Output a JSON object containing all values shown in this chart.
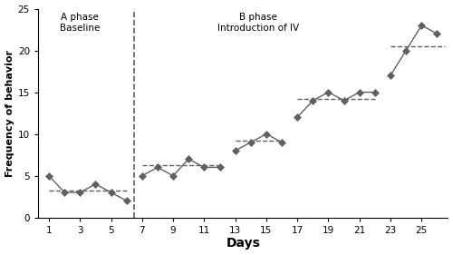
{
  "segments": [
    {
      "days": [
        1,
        2,
        3,
        4,
        5,
        6
      ],
      "values": [
        5,
        3,
        3,
        4,
        3,
        2
      ]
    },
    {
      "days": [
        7,
        8,
        9,
        10,
        11,
        12
      ],
      "values": [
        5,
        6,
        5,
        7,
        6,
        6
      ]
    },
    {
      "days": [
        13,
        14,
        15,
        16
      ],
      "values": [
        8,
        9,
        10,
        9
      ]
    },
    {
      "days": [
        17,
        18,
        19,
        20,
        21,
        22
      ],
      "values": [
        12,
        14,
        15,
        14,
        15,
        15
      ]
    },
    {
      "days": [
        23,
        24,
        25,
        26
      ],
      "values": [
        17,
        20,
        23,
        22
      ]
    }
  ],
  "criterion_lines": [
    {
      "x_start": 1,
      "x_end": 6,
      "y": 3.2
    },
    {
      "x_start": 7,
      "x_end": 12,
      "y": 6.3
    },
    {
      "x_start": 13,
      "x_end": 16,
      "y": 9.2
    },
    {
      "x_start": 17,
      "x_end": 22,
      "y": 14.2
    },
    {
      "x_start": 23,
      "x_end": 26.5,
      "y": 20.5
    }
  ],
  "phase_line_x": 6.5,
  "xlabel": "Days",
  "ylabel": "Frequency of behavior",
  "xlim": [
    0.3,
    26.7
  ],
  "ylim": [
    0,
    25
  ],
  "xticks": [
    1,
    3,
    5,
    7,
    9,
    11,
    13,
    15,
    17,
    19,
    21,
    23,
    25
  ],
  "yticks": [
    0,
    5,
    10,
    15,
    20,
    25
  ],
  "a_phase_label": "A phase\nBaseline",
  "b_phase_label": "B phase\nIntroduction of IV",
  "a_phase_x": 3.0,
  "a_phase_y": 24.5,
  "b_phase_x": 14.5,
  "b_phase_y": 24.5,
  "line_color": "#606060",
  "marker_color": "#606060",
  "criterion_color": "#606060",
  "phase_line_color": "#606060",
  "figsize": [
    5.0,
    2.81
  ],
  "dpi": 100
}
